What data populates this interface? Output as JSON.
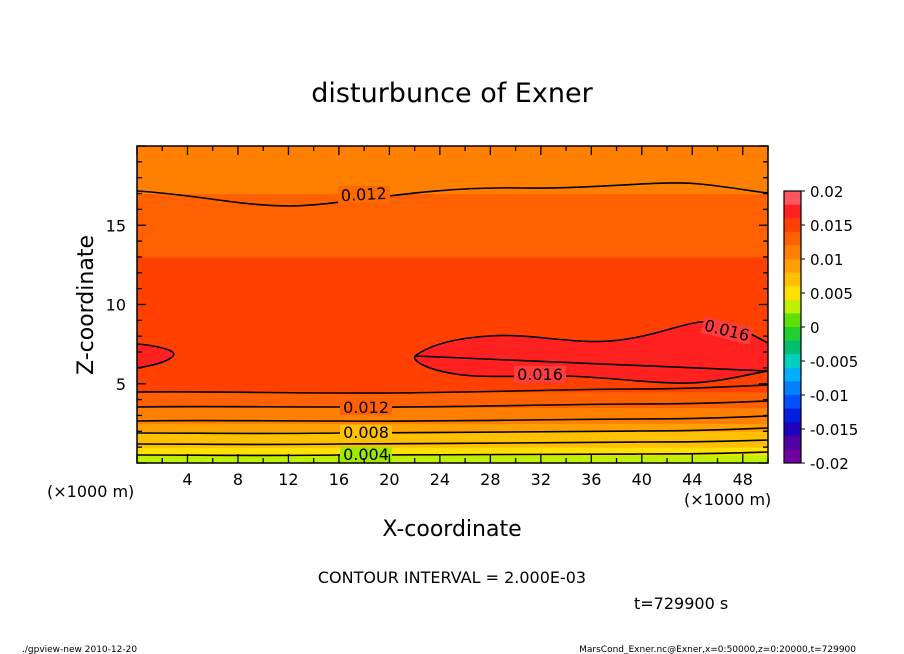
{
  "chart_data": {
    "type": "heatmap",
    "title": "disturbunce of Exner",
    "xlabel": "X-coordinate",
    "ylabel": "Z-coordinate",
    "x_units": "(×1000 m)",
    "y_units": "(×1000 m)",
    "xlim": [
      0,
      50
    ],
    "ylim": [
      0,
      20
    ],
    "x_ticks": [
      4,
      8,
      12,
      16,
      20,
      24,
      28,
      32,
      36,
      40,
      44,
      48
    ],
    "y_ticks": [
      5,
      10,
      15
    ],
    "contour_interval_text": "CONTOUR INTERVAL = 2.000E-03",
    "time_text": "t=729900 s",
    "contour_labels": [
      {
        "text": "0.012",
        "x": 19,
        "z": 16.5
      },
      {
        "text": "0.016",
        "x": 45,
        "z": 7.8
      },
      {
        "text": "0.016",
        "x": 32,
        "z": 5.3
      },
      {
        "text": "0.012",
        "x": 18,
        "z": 3.4
      },
      {
        "text": "0.008",
        "x": 18,
        "z": 1.9
      },
      {
        "text": "0.004",
        "x": 18,
        "z": 0.5
      }
    ],
    "colorbar": {
      "range": [
        -0.02,
        0.02
      ],
      "tick_labels": [
        "0.02",
        "0.015",
        "0.01",
        "0.005",
        "0",
        "-0.005",
        "-0.01",
        "-0.015",
        "-0.02"
      ],
      "colors": [
        "#ff5560",
        "#ff2020",
        "#ff4000",
        "#ff6000",
        "#ff8000",
        "#ffa000",
        "#ffc000",
        "#ffe000",
        "#c0f000",
        "#60e000",
        "#20d030",
        "#00c070",
        "#00d0c0",
        "#00b0ff",
        "#0080ff",
        "#0050ff",
        "#0020e0",
        "#2000c0",
        "#5000a0",
        "#7000a0"
      ]
    },
    "field_rows": [
      {
        "z": 0.0,
        "value": 0.003
      },
      {
        "z": 0.5,
        "value": 0.0045
      },
      {
        "z": 1.0,
        "value": 0.0065
      },
      {
        "z": 1.5,
        "value": 0.008
      },
      {
        "z": 2.0,
        "value": 0.0095
      },
      {
        "z": 2.5,
        "value": 0.0105
      },
      {
        "z": 3.0,
        "value": 0.0115
      },
      {
        "z": 3.5,
        "value": 0.0125
      },
      {
        "z": 4.0,
        "value": 0.0135
      },
      {
        "z": 4.5,
        "value": 0.015
      },
      {
        "z": 5.5,
        "value": 0.0155
      },
      {
        "z": 7.0,
        "value": 0.016
      },
      {
        "z": 9.0,
        "value": 0.015
      },
      {
        "z": 11.0,
        "value": 0.0142
      },
      {
        "z": 13.0,
        "value": 0.013
      },
      {
        "z": 15.0,
        "value": 0.0125
      },
      {
        "z": 17.0,
        "value": 0.0118
      },
      {
        "z": 18.5,
        "value": 0.011
      },
      {
        "z": 20.0,
        "value": 0.01
      }
    ]
  },
  "footer": {
    "left": "./gpview-new  2010-12-20",
    "right": "MarsCond_Exner.nc@Exner,x=0:50000,z=0:20000,t=729900"
  }
}
